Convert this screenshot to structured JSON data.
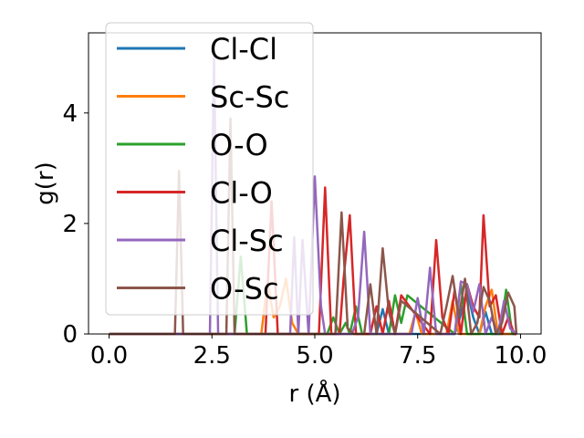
{
  "chart_data": {
    "type": "line",
    "xlabel": "r (Å)",
    "ylabel": "g(r)",
    "xlim": [
      -0.5,
      10.5
    ],
    "ylim": [
      0,
      5.45
    ],
    "xticks": [
      0.0,
      2.5,
      5.0,
      7.5,
      10.0
    ],
    "xtick_labels": [
      "0.0",
      "2.5",
      "5.0",
      "7.5",
      "10.0"
    ],
    "yticks": [
      0,
      2,
      4
    ],
    "ytick_labels": [
      "0",
      "2",
      "4"
    ],
    "grid": false,
    "legend_position": "top-left",
    "series": [
      {
        "name": "Cl-Cl",
        "color": "#1f77b4",
        "x": [
          0,
          6.5,
          6.65,
          6.8,
          8.4,
          8.55,
          8.7,
          8.85,
          9.0,
          9.15,
          9.3,
          9.9
        ],
        "y": [
          0,
          0,
          0.45,
          0,
          0,
          0.35,
          0.8,
          0.3,
          0,
          0.4,
          0,
          0
        ]
      },
      {
        "name": "Sc-Sc",
        "color": "#ff7f0e",
        "x": [
          0,
          3.7,
          3.85,
          4.0,
          4.15,
          4.3,
          4.45,
          4.6,
          7.3,
          7.45,
          7.6,
          8.2,
          8.35,
          8.5,
          9.0,
          9.15,
          9.3,
          9.45,
          9.9
        ],
        "y": [
          0,
          0,
          0.95,
          0.3,
          0.5,
          1.0,
          0.2,
          0,
          0,
          0.4,
          0,
          0,
          0.6,
          0,
          0,
          0.5,
          0.8,
          0,
          0
        ]
      },
      {
        "name": "O-O",
        "color": "#2ca02c",
        "x": [
          0,
          3.05,
          3.2,
          3.35,
          5.3,
          5.45,
          5.6,
          5.75,
          5.85,
          6.0,
          6.15,
          6.8,
          6.95,
          7.1,
          7.25,
          8.4,
          8.55,
          8.7,
          9.5,
          9.65,
          9.8,
          9.9
        ],
        "y": [
          0,
          0,
          1.4,
          0,
          0,
          0.3,
          0,
          0.2,
          0,
          0.5,
          0,
          0,
          0.7,
          0.2,
          0.7,
          0,
          0.9,
          0,
          0,
          0.8,
          0,
          0
        ]
      },
      {
        "name": "Cl-O",
        "color": "#d62728",
        "x": [
          0,
          3.8,
          3.95,
          4.1,
          5.1,
          5.25,
          5.4,
          5.6,
          5.7,
          5.85,
          6.0,
          6.35,
          6.5,
          6.65,
          6.8,
          6.95,
          7.1,
          7.8,
          7.95,
          8.1,
          8.25,
          8.4,
          8.55,
          8.7,
          8.85,
          9.0,
          9.1,
          9.25,
          9.4,
          9.55,
          9.7,
          9.85,
          9.9
        ],
        "y": [
          0,
          0,
          2.4,
          0,
          0,
          2.65,
          0,
          0,
          1.0,
          2.15,
          0,
          0,
          0.5,
          0,
          0.6,
          0,
          0.7,
          0,
          1.7,
          0.3,
          0,
          0.8,
          0,
          0.9,
          0.5,
          0.3,
          2.15,
          0.5,
          0.7,
          0,
          0.3,
          0,
          0
        ]
      },
      {
        "name": "Cl-Sc",
        "color": "#9467bd",
        "x": [
          0,
          2.45,
          2.55,
          2.65,
          4.4,
          4.5,
          4.6,
          4.7,
          4.85,
          5.0,
          5.15,
          5.25,
          5.9,
          6.05,
          6.2,
          6.35,
          7.35,
          7.5,
          7.65,
          7.8,
          7.95,
          8.4,
          8.55,
          8.7,
          8.85,
          9.0,
          9.15,
          9.3,
          9.45,
          9.6,
          9.75,
          9.9
        ],
        "y": [
          0,
          0,
          5.0,
          0,
          0,
          1.75,
          0,
          1.7,
          0,
          2.85,
          0.5,
          0,
          0,
          0.3,
          1.85,
          0,
          0,
          0.65,
          0,
          1.2,
          0,
          0,
          0.95,
          0.9,
          0.4,
          0.9,
          0,
          0.3,
          0,
          0.6,
          0.1,
          0
        ]
      },
      {
        "name": "O-Sc",
        "color": "#8c564b",
        "x": [
          0,
          1.6,
          1.7,
          1.8,
          2.85,
          2.95,
          3.05,
          5.5,
          5.65,
          5.8,
          5.95,
          6.2,
          6.35,
          6.5,
          6.65,
          6.8,
          6.95,
          7.1,
          8.05,
          8.2,
          8.35,
          8.5,
          8.65,
          8.8,
          8.95,
          9.1,
          9.25,
          9.4,
          9.55,
          9.7,
          9.85,
          9.9
        ],
        "y": [
          0,
          0,
          2.95,
          0,
          0,
          3.9,
          0,
          0,
          2.2,
          0.1,
          0,
          0,
          0.9,
          0,
          1.55,
          0.4,
          0,
          0.6,
          0,
          0.5,
          1.05,
          0.3,
          1.0,
          0,
          0.2,
          0.85,
          0.6,
          0,
          0.2,
          0.75,
          0.5,
          0
        ]
      }
    ]
  }
}
